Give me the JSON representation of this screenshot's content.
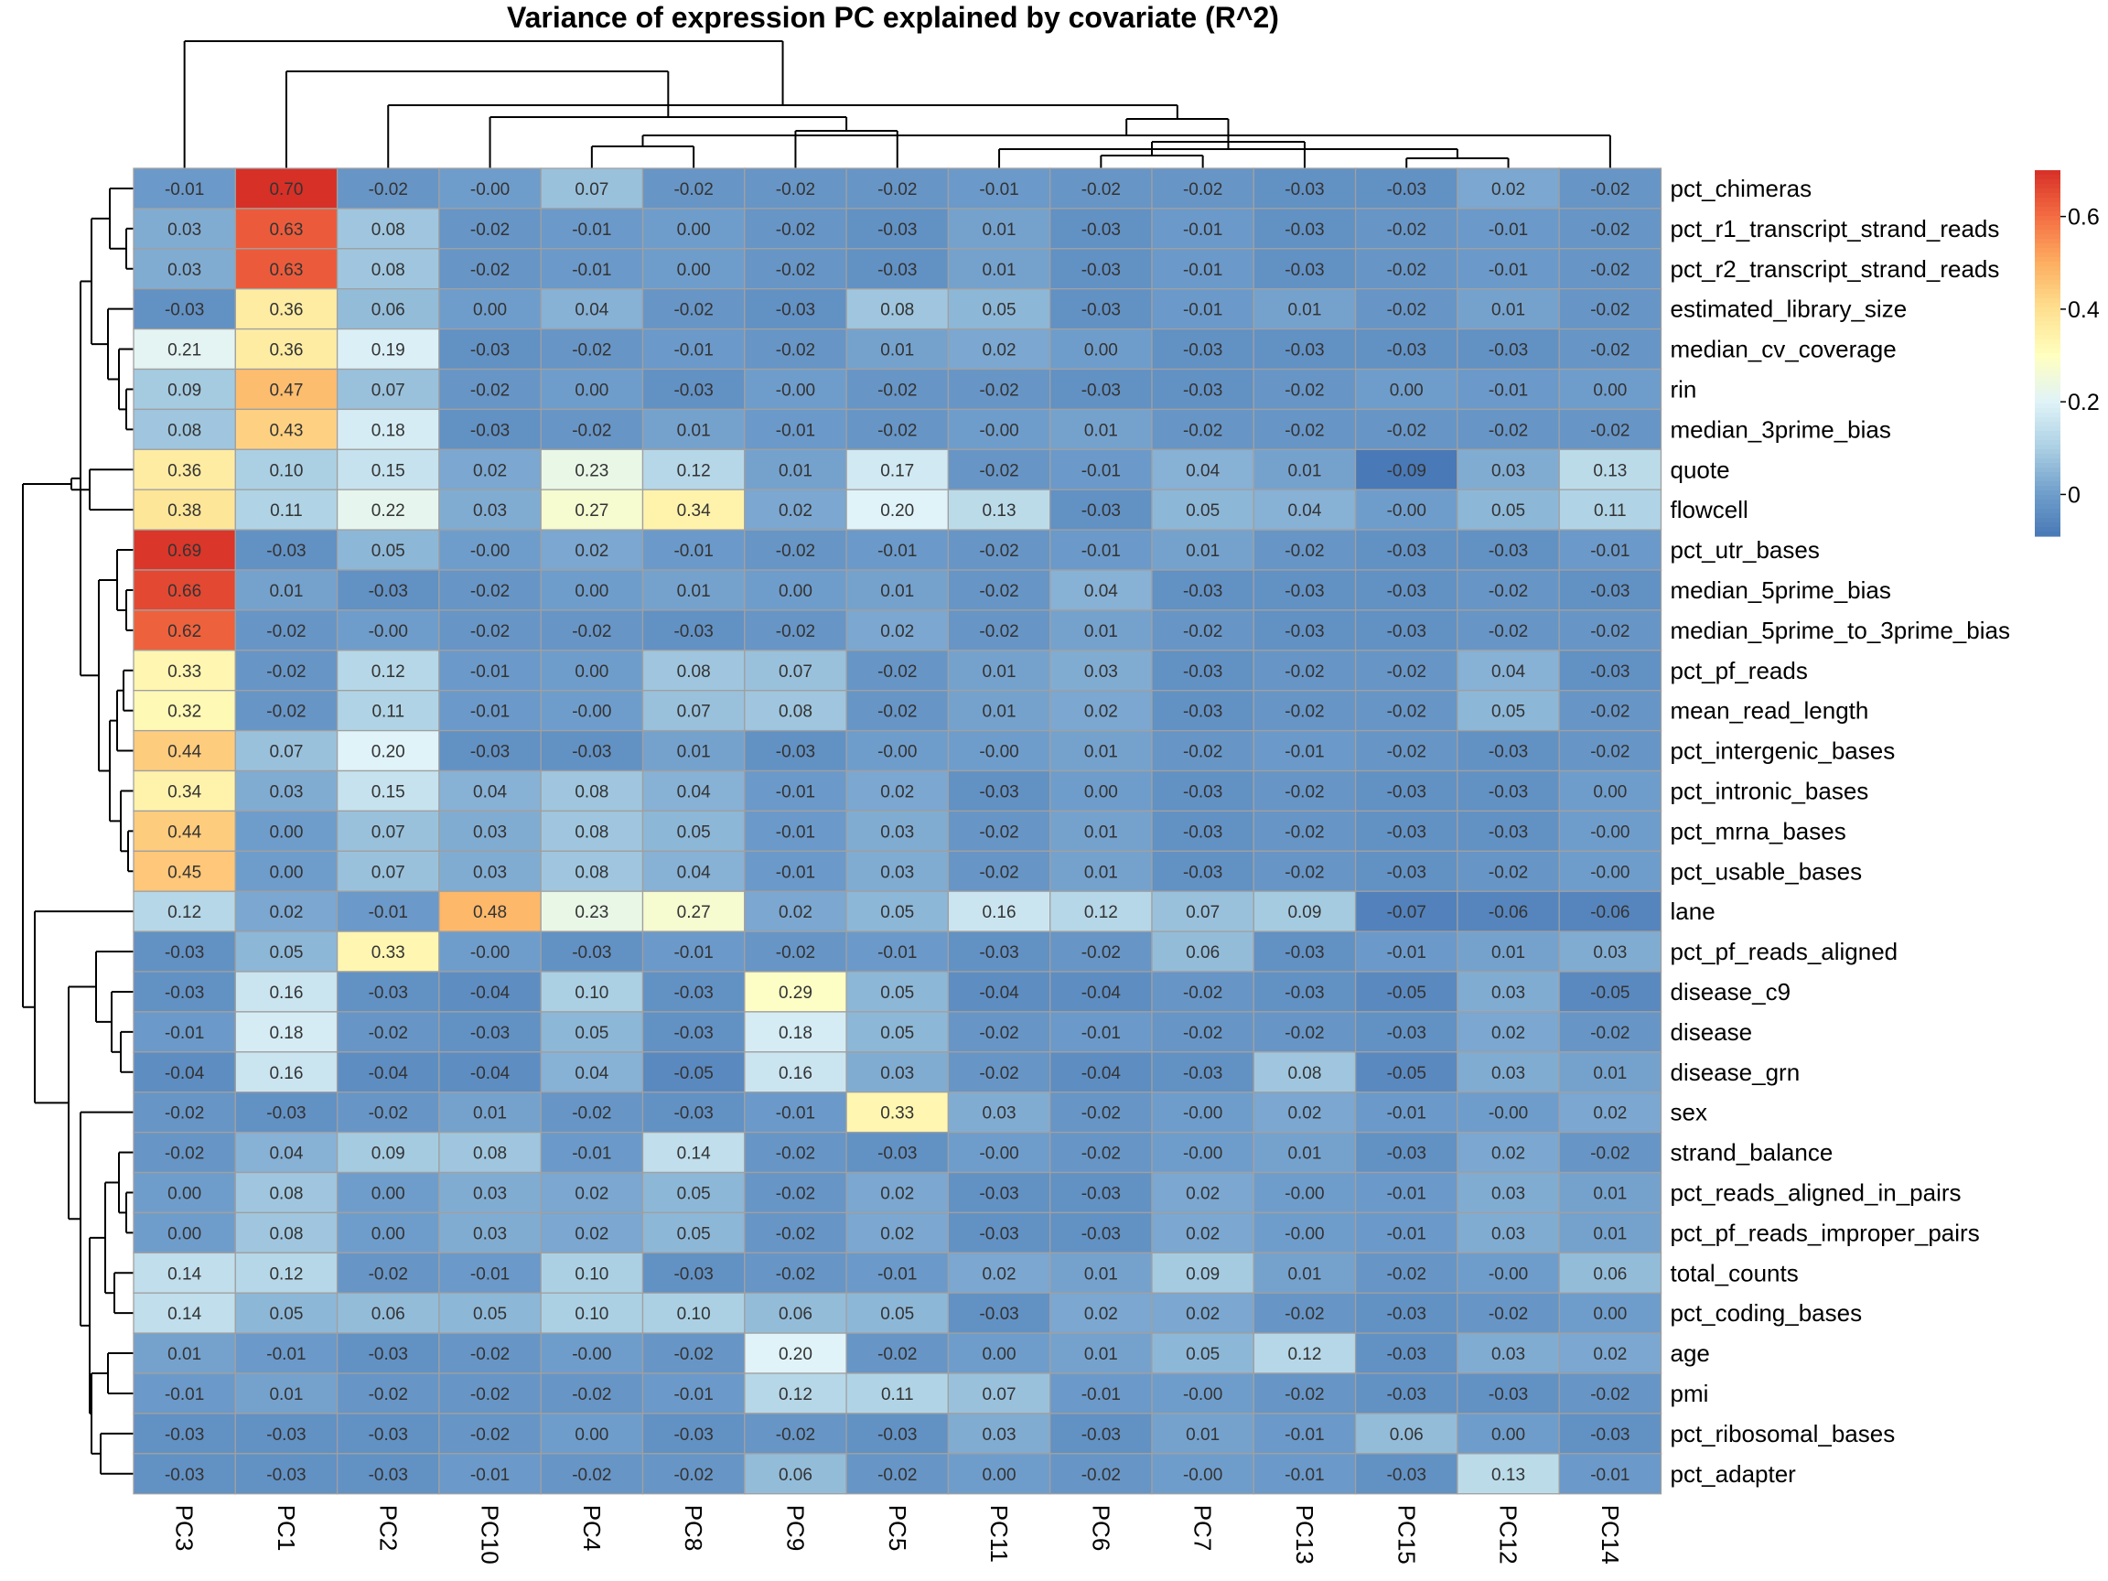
{
  "chart_data": {
    "type": "heatmap",
    "title": "Variance of expression PC explained by covariate (R^2)",
    "columns": [
      "PC3",
      "PC1",
      "PC2",
      "PC10",
      "PC4",
      "PC8",
      "PC9",
      "PC5",
      "PC11",
      "PC6",
      "PC7",
      "PC13",
      "PC15",
      "PC12",
      "PC14"
    ],
    "rows": [
      "pct_chimeras",
      "pct_r1_transcript_strand_reads",
      "pct_r2_transcript_strand_reads",
      "estimated_library_size",
      "median_cv_coverage",
      "rin",
      "median_3prime_bias",
      "quote",
      "flowcell",
      "pct_utr_bases",
      "median_5prime_bias",
      "median_5prime_to_3prime_bias",
      "pct_pf_reads",
      "mean_read_length",
      "pct_intergenic_bases",
      "pct_intronic_bases",
      "pct_mrna_bases",
      "pct_usable_bases",
      "lane",
      "pct_pf_reads_aligned",
      "disease_c9",
      "disease",
      "disease_grn",
      "sex",
      "strand_balance",
      "pct_reads_aligned_in_pairs",
      "pct_pf_reads_improper_pairs",
      "total_counts",
      "pct_coding_bases",
      "age",
      "pmi",
      "pct_ribosomal_bases",
      "pct_adapter"
    ],
    "values": [
      [
        "-0.01",
        "0.70",
        "-0.02",
        "-0.00",
        "0.07",
        "-0.02",
        "-0.02",
        "-0.02",
        "-0.01",
        "-0.02",
        "-0.02",
        "-0.03",
        "-0.03",
        "0.02",
        "-0.02"
      ],
      [
        "0.03",
        "0.63",
        "0.08",
        "-0.02",
        "-0.01",
        "0.00",
        "-0.02",
        "-0.03",
        "0.01",
        "-0.03",
        "-0.01",
        "-0.03",
        "-0.02",
        "-0.01",
        "-0.02"
      ],
      [
        "0.03",
        "0.63",
        "0.08",
        "-0.02",
        "-0.01",
        "0.00",
        "-0.02",
        "-0.03",
        "0.01",
        "-0.03",
        "-0.01",
        "-0.03",
        "-0.02",
        "-0.01",
        "-0.02"
      ],
      [
        "-0.03",
        "0.36",
        "0.06",
        "0.00",
        "0.04",
        "-0.02",
        "-0.03",
        "0.08",
        "0.05",
        "-0.03",
        "-0.01",
        "0.01",
        "-0.02",
        "0.01",
        "-0.02"
      ],
      [
        "0.21",
        "0.36",
        "0.19",
        "-0.03",
        "-0.02",
        "-0.01",
        "-0.02",
        "0.01",
        "0.02",
        "0.00",
        "-0.03",
        "-0.03",
        "-0.03",
        "-0.03",
        "-0.02"
      ],
      [
        "0.09",
        "0.47",
        "0.07",
        "-0.02",
        "0.00",
        "-0.03",
        "-0.00",
        "-0.02",
        "-0.02",
        "-0.03",
        "-0.03",
        "-0.02",
        "0.00",
        "-0.01",
        "0.00"
      ],
      [
        "0.08",
        "0.43",
        "0.18",
        "-0.03",
        "-0.02",
        "0.01",
        "-0.01",
        "-0.02",
        "-0.00",
        "0.01",
        "-0.02",
        "-0.02",
        "-0.02",
        "-0.02",
        "-0.02"
      ],
      [
        "0.36",
        "0.10",
        "0.15",
        "0.02",
        "0.23",
        "0.12",
        "0.01",
        "0.17",
        "-0.02",
        "-0.01",
        "0.04",
        "0.01",
        "-0.09",
        "0.03",
        "0.13"
      ],
      [
        "0.38",
        "0.11",
        "0.22",
        "0.03",
        "0.27",
        "0.34",
        "0.02",
        "0.20",
        "0.13",
        "-0.03",
        "0.05",
        "0.04",
        "-0.00",
        "0.05",
        "0.11"
      ],
      [
        "0.69",
        "-0.03",
        "0.05",
        "-0.00",
        "0.02",
        "-0.01",
        "-0.02",
        "-0.01",
        "-0.02",
        "-0.01",
        "0.01",
        "-0.02",
        "-0.03",
        "-0.03",
        "-0.01"
      ],
      [
        "0.66",
        "0.01",
        "-0.03",
        "-0.02",
        "0.00",
        "0.01",
        "0.00",
        "0.01",
        "-0.02",
        "0.04",
        "-0.03",
        "-0.03",
        "-0.03",
        "-0.02",
        "-0.03"
      ],
      [
        "0.62",
        "-0.02",
        "-0.00",
        "-0.02",
        "-0.02",
        "-0.03",
        "-0.02",
        "0.02",
        "-0.02",
        "0.01",
        "-0.02",
        "-0.03",
        "-0.03",
        "-0.02",
        "-0.02"
      ],
      [
        "0.33",
        "-0.02",
        "0.12",
        "-0.01",
        "0.00",
        "0.08",
        "0.07",
        "-0.02",
        "0.01",
        "0.03",
        "-0.03",
        "-0.02",
        "-0.02",
        "0.04",
        "-0.03"
      ],
      [
        "0.32",
        "-0.02",
        "0.11",
        "-0.01",
        "-0.00",
        "0.07",
        "0.08",
        "-0.02",
        "0.01",
        "0.02",
        "-0.03",
        "-0.02",
        "-0.02",
        "0.05",
        "-0.02"
      ],
      [
        "0.44",
        "0.07",
        "0.20",
        "-0.03",
        "-0.03",
        "0.01",
        "-0.03",
        "-0.00",
        "-0.00",
        "0.01",
        "-0.02",
        "-0.01",
        "-0.02",
        "-0.03",
        "-0.02"
      ],
      [
        "0.34",
        "0.03",
        "0.15",
        "0.04",
        "0.08",
        "0.04",
        "-0.01",
        "0.02",
        "-0.03",
        "0.00",
        "-0.03",
        "-0.02",
        "-0.03",
        "-0.03",
        "0.00"
      ],
      [
        "0.44",
        "0.00",
        "0.07",
        "0.03",
        "0.08",
        "0.05",
        "-0.01",
        "0.03",
        "-0.02",
        "0.01",
        "-0.03",
        "-0.02",
        "-0.03",
        "-0.03",
        "-0.00"
      ],
      [
        "0.45",
        "0.00",
        "0.07",
        "0.03",
        "0.08",
        "0.04",
        "-0.01",
        "0.03",
        "-0.02",
        "0.01",
        "-0.03",
        "-0.02",
        "-0.03",
        "-0.02",
        "-0.00"
      ],
      [
        "0.12",
        "0.02",
        "-0.01",
        "0.48",
        "0.23",
        "0.27",
        "0.02",
        "0.05",
        "0.16",
        "0.12",
        "0.07",
        "0.09",
        "-0.07",
        "-0.06",
        "-0.06"
      ],
      [
        "-0.03",
        "0.05",
        "0.33",
        "-0.00",
        "-0.03",
        "-0.01",
        "-0.02",
        "-0.01",
        "-0.03",
        "-0.02",
        "0.06",
        "-0.03",
        "-0.01",
        "0.01",
        "0.03"
      ],
      [
        "-0.03",
        "0.16",
        "-0.03",
        "-0.04",
        "0.10",
        "-0.03",
        "0.29",
        "0.05",
        "-0.04",
        "-0.04",
        "-0.02",
        "-0.03",
        "-0.05",
        "0.03",
        "-0.05"
      ],
      [
        "-0.01",
        "0.18",
        "-0.02",
        "-0.03",
        "0.05",
        "-0.03",
        "0.18",
        "0.05",
        "-0.02",
        "-0.01",
        "-0.02",
        "-0.02",
        "-0.03",
        "0.02",
        "-0.02"
      ],
      [
        "-0.04",
        "0.16",
        "-0.04",
        "-0.04",
        "0.04",
        "-0.05",
        "0.16",
        "0.03",
        "-0.02",
        "-0.04",
        "-0.03",
        "0.08",
        "-0.05",
        "0.03",
        "0.01"
      ],
      [
        "-0.02",
        "-0.03",
        "-0.02",
        "0.01",
        "-0.02",
        "-0.03",
        "-0.01",
        "0.33",
        "0.03",
        "-0.02",
        "-0.00",
        "0.02",
        "-0.01",
        "-0.00",
        "0.02"
      ],
      [
        "-0.02",
        "0.04",
        "0.09",
        "0.08",
        "-0.01",
        "0.14",
        "-0.02",
        "-0.03",
        "-0.00",
        "-0.02",
        "-0.00",
        "0.01",
        "-0.03",
        "0.02",
        "-0.02"
      ],
      [
        "0.00",
        "0.08",
        "0.00",
        "0.03",
        "0.02",
        "0.05",
        "-0.02",
        "0.02",
        "-0.03",
        "-0.03",
        "0.02",
        "-0.00",
        "-0.01",
        "0.03",
        "0.01"
      ],
      [
        "0.00",
        "0.08",
        "0.00",
        "0.03",
        "0.02",
        "0.05",
        "-0.02",
        "0.02",
        "-0.03",
        "-0.03",
        "0.02",
        "-0.00",
        "-0.01",
        "0.03",
        "0.01"
      ],
      [
        "0.14",
        "0.12",
        "-0.02",
        "-0.01",
        "0.10",
        "-0.03",
        "-0.02",
        "-0.01",
        "0.02",
        "0.01",
        "0.09",
        "0.01",
        "-0.02",
        "-0.00",
        "0.06"
      ],
      [
        "0.14",
        "0.05",
        "0.06",
        "0.05",
        "0.10",
        "0.10",
        "0.06",
        "0.05",
        "-0.03",
        "0.02",
        "0.02",
        "-0.02",
        "-0.03",
        "-0.02",
        "0.00"
      ],
      [
        "0.01",
        "-0.01",
        "-0.03",
        "-0.02",
        "-0.00",
        "-0.02",
        "0.20",
        "-0.02",
        "0.00",
        "0.01",
        "0.05",
        "0.12",
        "-0.03",
        "0.03",
        "0.02"
      ],
      [
        "-0.01",
        "0.01",
        "-0.02",
        "-0.02",
        "-0.02",
        "-0.01",
        "0.12",
        "0.11",
        "0.07",
        "-0.01",
        "-0.00",
        "-0.02",
        "-0.03",
        "-0.03",
        "-0.02"
      ],
      [
        "-0.03",
        "-0.03",
        "-0.03",
        "-0.02",
        "0.00",
        "-0.03",
        "-0.02",
        "-0.03",
        "0.03",
        "-0.03",
        "0.01",
        "-0.01",
        "0.06",
        "0.00",
        "-0.03"
      ],
      [
        "-0.03",
        "-0.03",
        "-0.03",
        "-0.01",
        "-0.02",
        "-0.02",
        "0.06",
        "-0.02",
        "0.00",
        "-0.02",
        "-0.00",
        "-0.01",
        "-0.03",
        "0.13",
        "-0.01"
      ]
    ],
    "color_scale": {
      "stops": [
        {
          "value": -0.1,
          "color": "#4575b4"
        },
        {
          "value": 0.0,
          "color": "#6f9dcb"
        },
        {
          "value": 0.1,
          "color": "#abd0e3"
        },
        {
          "value": 0.2,
          "color": "#e0f3f8"
        },
        {
          "value": 0.3,
          "color": "#ffffbf"
        },
        {
          "value": 0.4,
          "color": "#fee090"
        },
        {
          "value": 0.5,
          "color": "#fdae61"
        },
        {
          "value": 0.6,
          "color": "#f46d43"
        },
        {
          "value": 0.7,
          "color": "#d73027"
        }
      ],
      "range": [
        -0.09,
        0.7
      ]
    },
    "legend": {
      "position": "right",
      "ticks": [
        {
          "value": 0,
          "label": "0"
        },
        {
          "value": 0.2,
          "label": "0.2"
        },
        {
          "value": 0.4,
          "label": "0.4"
        },
        {
          "value": 0.6,
          "label": "0.6"
        }
      ]
    },
    "cell_border_color": "#a0a0a0"
  }
}
